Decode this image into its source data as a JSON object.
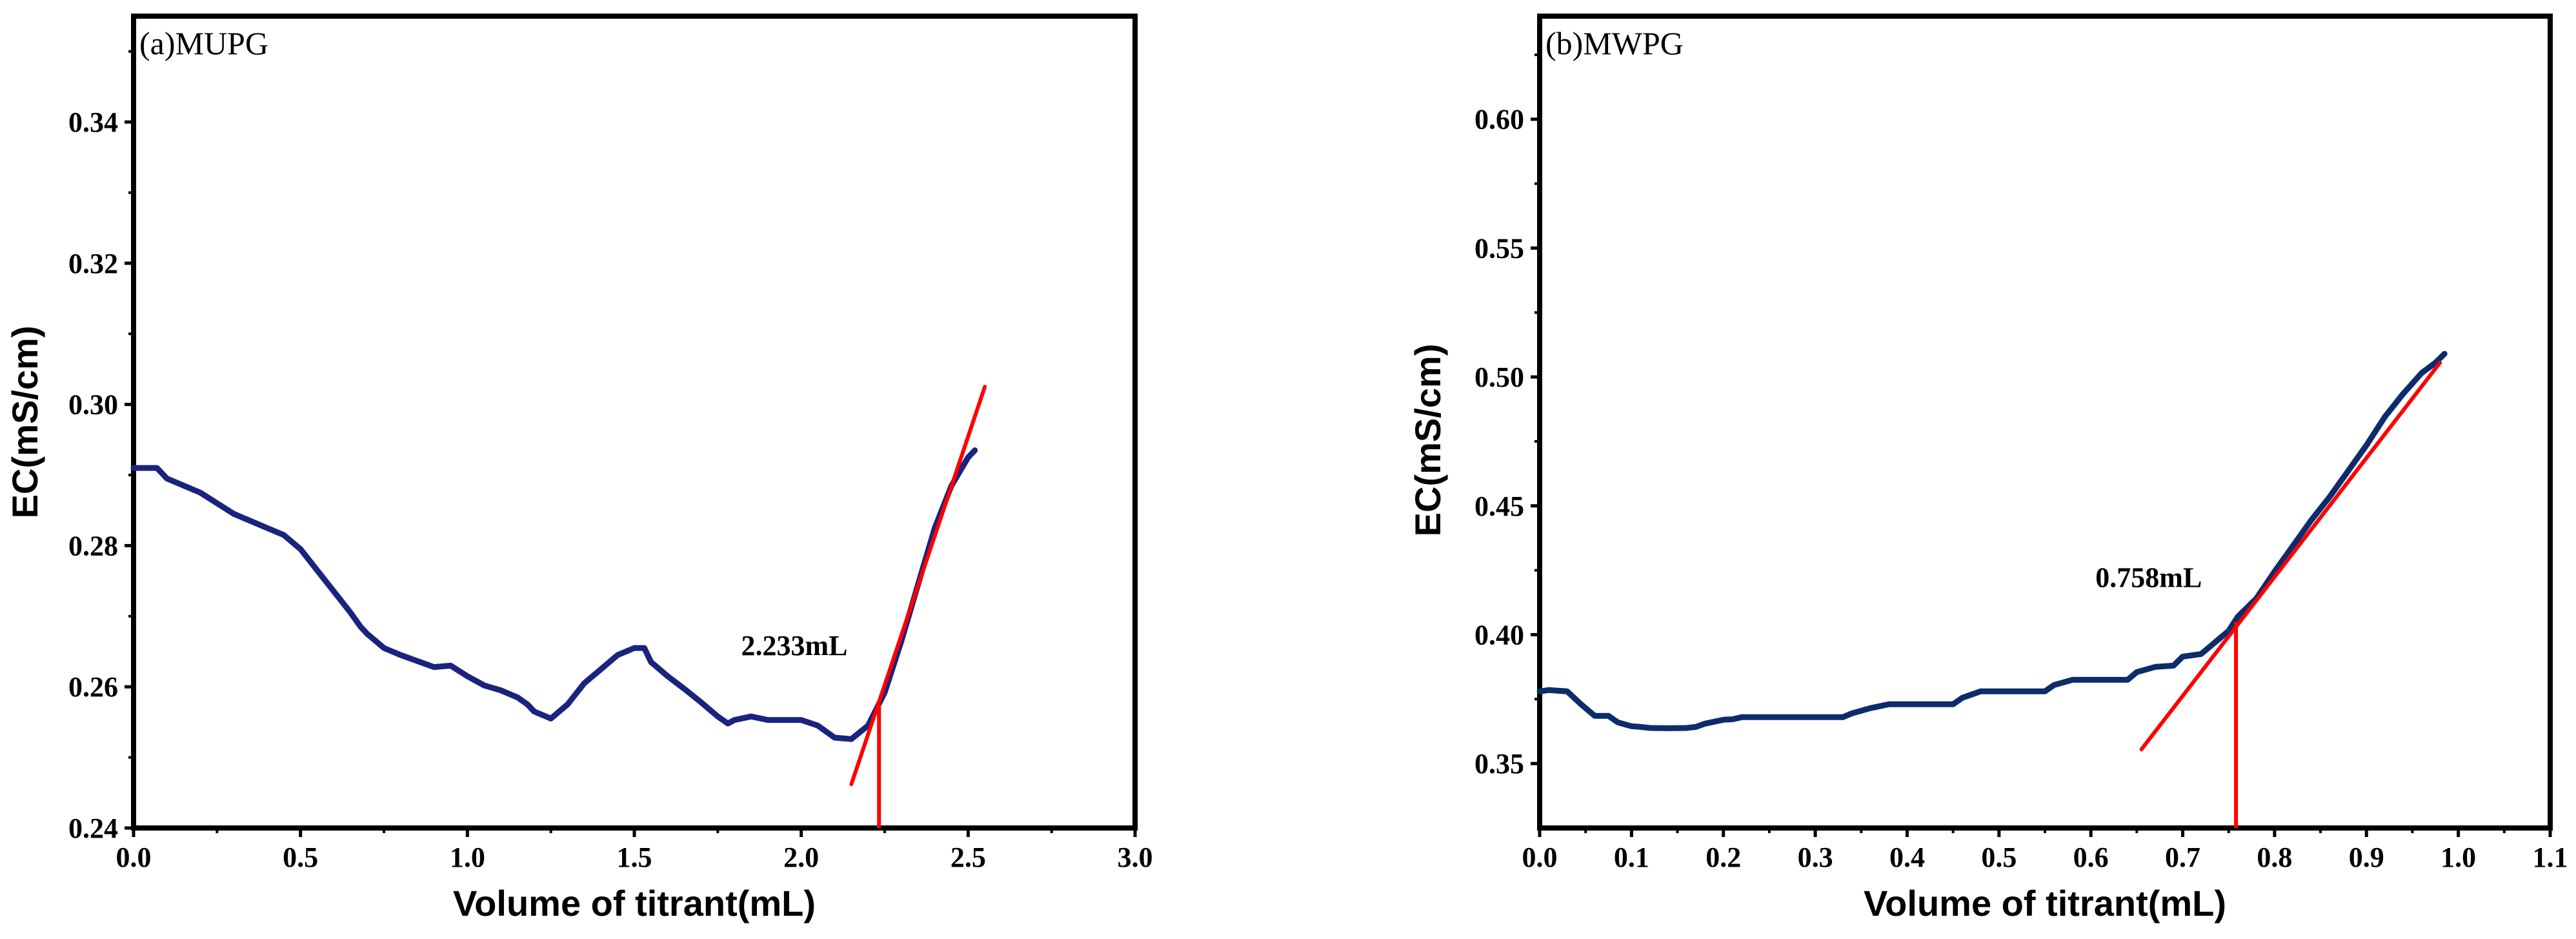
{
  "chart_data": [
    {
      "type": "line",
      "panel_label": "(a)MUPG",
      "xlabel": "Volume of titrant(mL)",
      "ylabel": "EC(mS/cm)",
      "xlim": [
        0,
        3.0
      ],
      "ylim": [
        0.24,
        0.355
      ],
      "x_ticks": [
        0.0,
        0.5,
        1.0,
        1.5,
        2.0,
        2.5,
        3.0
      ],
      "x_tick_labels": [
        "0.0",
        "0.5",
        "1.0",
        "1.5",
        "2.0",
        "2.5",
        "3.0"
      ],
      "y_ticks": [
        0.24,
        0.26,
        0.28,
        0.3,
        0.32,
        0.34
      ],
      "y_tick_labels": [
        "0.24",
        "0.26",
        "0.28",
        "0.30",
        "0.32",
        "0.34"
      ],
      "series": [
        {
          "name": "EC",
          "color": "#1a237e",
          "x": [
            0.0,
            0.07,
            0.1,
            0.2,
            0.3,
            0.4,
            0.45,
            0.5,
            0.55,
            0.6,
            0.65,
            0.68,
            0.7,
            0.75,
            0.8,
            0.9,
            0.95,
            1.0,
            1.05,
            1.1,
            1.15,
            1.18,
            1.2,
            1.25,
            1.3,
            1.35,
            1.4,
            1.45,
            1.5,
            1.53,
            1.55,
            1.6,
            1.65,
            1.7,
            1.75,
            1.78,
            1.8,
            1.85,
            1.9,
            2.0,
            2.05,
            2.1,
            2.15,
            2.2,
            2.25,
            2.3,
            2.35,
            2.4,
            2.45,
            2.5,
            2.52
          ],
          "y": [
            0.291,
            0.291,
            0.2895,
            0.2875,
            0.2845,
            0.2825,
            0.2815,
            0.2795,
            0.2765,
            0.2735,
            0.2705,
            0.2685,
            0.2675,
            0.2655,
            0.2645,
            0.2628,
            0.263,
            0.2615,
            0.2602,
            0.2595,
            0.2585,
            0.2575,
            0.2565,
            0.2555,
            0.2575,
            0.2605,
            0.2625,
            0.2645,
            0.2655,
            0.2655,
            0.2635,
            0.2615,
            0.2597,
            0.2578,
            0.2558,
            0.2548,
            0.2553,
            0.2558,
            0.2553,
            0.2553,
            0.2545,
            0.2528,
            0.2526,
            0.2545,
            0.2592,
            0.2665,
            0.2745,
            0.2825,
            0.2885,
            0.2925,
            0.2935
          ]
        },
        {
          "name": "tangent",
          "color": "#ff0000",
          "x": [
            2.15,
            2.55
          ],
          "y": [
            0.2462,
            0.3025
          ]
        }
      ],
      "vline": {
        "x": 2.233,
        "y0": 0.24,
        "y1": 0.2575,
        "color": "#ff0000"
      },
      "annotation": {
        "text": "2.233mL",
        "x": 1.82,
        "y": 0.2645
      }
    },
    {
      "type": "line",
      "panel_label": "(b)MWPG",
      "xlabel": "Volume of titrant(mL)",
      "ylabel": "EC(mS/cm)",
      "xlim": [
        0,
        1.1
      ],
      "ylim": [
        0.325,
        0.64
      ],
      "x_ticks": [
        0.0,
        0.1,
        0.2,
        0.3,
        0.4,
        0.5,
        0.6,
        0.7,
        0.8,
        0.9,
        1.0,
        1.1
      ],
      "x_tick_labels": [
        "0.0",
        "0.1",
        "0.2",
        "0.3",
        "0.4",
        "0.5",
        "0.6",
        "0.7",
        "0.8",
        "0.9",
        "1.0",
        "1.1"
      ],
      "y_ticks": [
        0.35,
        0.4,
        0.45,
        0.5,
        0.55,
        0.6
      ],
      "y_tick_labels": [
        "0.35",
        "0.40",
        "0.45",
        "0.50",
        "0.55",
        "0.60"
      ],
      "series": [
        {
          "name": "EC",
          "color": "#0d2c6b",
          "x": [
            0.0,
            0.01,
            0.03,
            0.045,
            0.06,
            0.075,
            0.085,
            0.1,
            0.11,
            0.12,
            0.14,
            0.16,
            0.17,
            0.18,
            0.2,
            0.21,
            0.22,
            0.3,
            0.33,
            0.34,
            0.36,
            0.38,
            0.45,
            0.46,
            0.48,
            0.55,
            0.56,
            0.58,
            0.64,
            0.65,
            0.67,
            0.69,
            0.7,
            0.72,
            0.73,
            0.74,
            0.75,
            0.76,
            0.78,
            0.8,
            0.82,
            0.84,
            0.86,
            0.88,
            0.9,
            0.92,
            0.94,
            0.96,
            0.975,
            0.985
          ],
          "y": [
            0.378,
            0.3785,
            0.378,
            0.373,
            0.3685,
            0.3685,
            0.366,
            0.3645,
            0.3642,
            0.3638,
            0.3637,
            0.3638,
            0.3642,
            0.3655,
            0.367,
            0.3672,
            0.368,
            0.368,
            0.368,
            0.3695,
            0.3715,
            0.373,
            0.373,
            0.3755,
            0.378,
            0.378,
            0.3805,
            0.3825,
            0.3825,
            0.3855,
            0.3875,
            0.388,
            0.3915,
            0.3925,
            0.3955,
            0.3985,
            0.4015,
            0.407,
            0.414,
            0.4245,
            0.4345,
            0.4445,
            0.4535,
            0.4635,
            0.4735,
            0.4845,
            0.4935,
            0.5015,
            0.5055,
            0.509
          ]
        },
        {
          "name": "tangent",
          "color": "#ff0000",
          "x": [
            0.655,
            0.98
          ],
          "y": [
            0.3555,
            0.5055
          ]
        }
      ],
      "vline": {
        "x": 0.758,
        "y0": 0.325,
        "y1": 0.405,
        "color": "#ff0000"
      },
      "annotation": {
        "text": "0.758mL",
        "x": 0.605,
        "y": 0.4185
      }
    }
  ]
}
